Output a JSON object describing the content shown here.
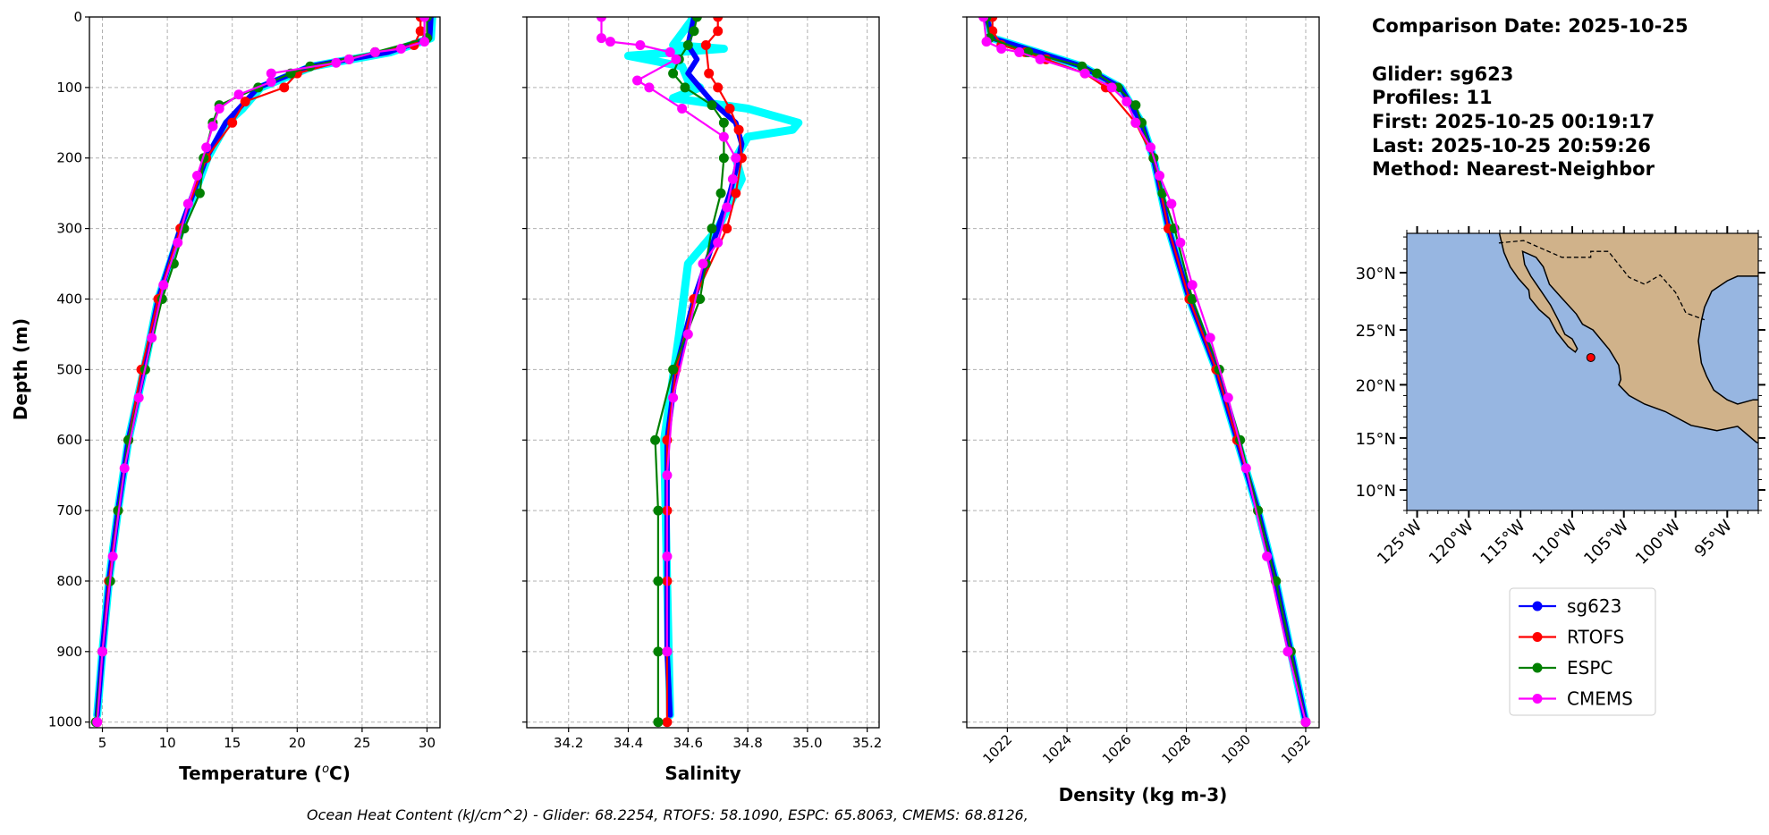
{
  "info": {
    "comparison_date": "Comparison Date: 2025-10-25",
    "glider": "Glider: sg623",
    "profiles": "Profiles: 11",
    "first": "First: 2025-10-25 00:19:17",
    "last": "Last: 2025-10-25 20:59:26",
    "method": "Method: Nearest-Neighbor"
  },
  "caption": "Ocean Heat Content (kJ/cm^2) - Glider: 68.2254,  RTOFS: 58.1090,  ESPC: 65.8063,  CMEMS: 68.8126,",
  "legend": [
    {
      "name": "sg623",
      "color": "#0000ff"
    },
    {
      "name": "RTOFS",
      "color": "#ff0000"
    },
    {
      "name": "ESPC",
      "color": "#008000"
    },
    {
      "name": "CMEMS",
      "color": "#ff00ff"
    }
  ],
  "colors": {
    "glider_raw": "#00ffff",
    "ocean": "#97b6e1",
    "land": "#d0b28a",
    "marker": "#ff0000"
  },
  "chart_data": [
    {
      "type": "line",
      "xlabel": "Temperature (°C)",
      "ylabel": "Depth (m)",
      "xlim": [
        4.0,
        31.0
      ],
      "ylim": [
        1008,
        0
      ],
      "xticks": [
        5,
        10,
        15,
        20,
        25,
        30
      ],
      "yticks": [
        0,
        100,
        200,
        300,
        400,
        500,
        600,
        700,
        800,
        900,
        1000
      ],
      "grid": true,
      "series": [
        {
          "name": "",
          "color": "#00ffff",
          "depth": [
            0,
            30,
            50,
            70,
            100,
            130,
            150,
            200,
            250,
            300,
            400,
            500,
            600,
            700,
            800,
            900,
            990
          ],
          "values": [
            30.4,
            30.3,
            27.2,
            21.2,
            17.2,
            15.8,
            14.6,
            13.1,
            12.1,
            11.1,
            9.3,
            8.2,
            7.0,
            6.2,
            5.5,
            5.0,
            4.6
          ]
        },
        {
          "name": "sg623",
          "color": "#0000ff",
          "depth": [
            0,
            30,
            50,
            70,
            100,
            130,
            150,
            200,
            250,
            300,
            400,
            500,
            600,
            700,
            800,
            900,
            990
          ],
          "values": [
            30.3,
            30.2,
            27,
            21,
            17,
            15.5,
            14.5,
            13,
            12,
            11,
            9.3,
            8.2,
            7,
            6.2,
            5.5,
            5,
            4.6
          ]
        },
        {
          "name": "RTOFS",
          "color": "#ff0000",
          "depth": [
            0,
            20,
            40,
            50,
            60,
            80,
            100,
            120,
            150,
            200,
            300,
            400,
            500,
            600,
            700,
            800,
            900,
            1000
          ],
          "values": [
            29.5,
            29.5,
            29,
            26,
            24,
            20,
            19,
            16,
            15,
            13,
            11,
            9.3,
            8,
            7,
            6.2,
            5.5,
            5,
            4.6
          ]
        },
        {
          "name": "ESPC",
          "color": "#008000",
          "depth": [
            0,
            30,
            50,
            70,
            80,
            100,
            125,
            150,
            200,
            250,
            300,
            350,
            400,
            500,
            600,
            700,
            800,
            900,
            1000
          ],
          "values": [
            30,
            30,
            26,
            21,
            19.5,
            17,
            14,
            13.5,
            12.8,
            12.5,
            11.3,
            10.5,
            9.6,
            8.3,
            7,
            6.2,
            5.6,
            5,
            4.5
          ]
        },
        {
          "name": "CMEMS",
          "color": "#ff00ff",
          "depth": [
            0,
            35,
            45,
            50,
            60,
            65,
            80,
            92,
            110,
            130,
            155,
            185,
            225,
            265,
            320,
            380,
            455,
            540,
            640,
            765,
            900,
            1000
          ],
          "values": [
            29.8,
            29.8,
            28,
            26,
            24,
            23,
            18,
            18,
            15.5,
            14,
            13.5,
            13,
            12.3,
            11.6,
            10.8,
            9.7,
            8.8,
            7.8,
            6.7,
            5.8,
            5,
            4.6
          ]
        }
      ]
    },
    {
      "type": "line",
      "xlabel": "Salinity",
      "xlim": [
        34.06,
        35.24
      ],
      "ylim": [
        1008,
        0
      ],
      "xticks": [
        34.2,
        34.4,
        34.6,
        34.8,
        35.0,
        35.2
      ],
      "grid": true,
      "series": [
        {
          "name": "",
          "color": "#00ffff",
          "depth": [
            0,
            40,
            45,
            55,
            70,
            90,
            100,
            115,
            130,
            150,
            160,
            170,
            200,
            230,
            300,
            350,
            450,
            600,
            800,
            990
          ],
          "values": [
            34.62,
            34.55,
            34.72,
            34.4,
            34.58,
            34.6,
            34.64,
            34.55,
            34.8,
            34.97,
            34.95,
            34.8,
            34.76,
            34.78,
            34.7,
            34.6,
            34.57,
            34.52,
            34.53,
            34.54
          ]
        },
        {
          "name": "sg623",
          "color": "#0000ff",
          "depth": [
            0,
            40,
            60,
            80,
            100,
            120,
            150,
            180,
            200,
            250,
            300,
            350,
            400,
            500,
            600,
            700,
            800,
            900,
            990
          ],
          "values": [
            34.62,
            34.6,
            34.63,
            34.6,
            34.64,
            34.68,
            34.76,
            34.78,
            34.77,
            34.74,
            34.7,
            34.66,
            34.62,
            34.56,
            34.53,
            34.53,
            34.53,
            34.53,
            34.54
          ]
        },
        {
          "name": "RTOFS",
          "color": "#ff0000",
          "depth": [
            0,
            20,
            40,
            80,
            100,
            130,
            160,
            200,
            250,
            300,
            400,
            500,
            600,
            700,
            800,
            900,
            1000
          ],
          "values": [
            34.7,
            34.7,
            34.66,
            34.67,
            34.7,
            34.74,
            34.77,
            34.78,
            34.76,
            34.73,
            34.62,
            34.56,
            34.53,
            34.53,
            34.53,
            34.53,
            34.53
          ]
        },
        {
          "name": "ESPC",
          "color": "#008000",
          "depth": [
            0,
            20,
            40,
            60,
            80,
            100,
            125,
            150,
            200,
            250,
            300,
            350,
            400,
            500,
            600,
            700,
            800,
            900,
            1000
          ],
          "values": [
            34.63,
            34.62,
            34.6,
            34.57,
            34.55,
            34.59,
            34.68,
            34.72,
            34.72,
            34.71,
            34.68,
            34.66,
            34.64,
            34.55,
            34.49,
            34.5,
            34.5,
            34.5,
            34.5
          ]
        },
        {
          "name": "CMEMS",
          "color": "#ff00ff",
          "depth": [
            0,
            30,
            35,
            40,
            50,
            60,
            90,
            100,
            130,
            170,
            200,
            230,
            270,
            320,
            350,
            450,
            540,
            650,
            765,
            900
          ],
          "values": [
            34.31,
            34.31,
            34.34,
            34.44,
            34.54,
            34.56,
            34.43,
            34.47,
            34.58,
            34.72,
            34.76,
            34.75,
            34.73,
            34.7,
            34.65,
            34.6,
            34.55,
            34.53,
            34.53,
            34.53
          ]
        }
      ]
    },
    {
      "type": "line",
      "xlabel": "Density (kg m-3)",
      "xlim": [
        1020.64,
        1032.45
      ],
      "ylim": [
        1008,
        0
      ],
      "xticks": [
        1022,
        1024,
        1026,
        1028,
        1030,
        1032
      ],
      "grid": true,
      "series": [
        {
          "name": "",
          "color": "#00ffff",
          "depth": [
            0,
            30,
            50,
            70,
            100,
            150,
            200,
            300,
            400,
            500,
            600,
            700,
            800,
            900,
            1000
          ],
          "values": [
            1021.3,
            1021.5,
            1023,
            1024.5,
            1025.8,
            1026.5,
            1026.9,
            1027.4,
            1028.1,
            1029,
            1029.7,
            1030.4,
            1031,
            1031.5,
            1032
          ]
        },
        {
          "name": "sg623",
          "color": "#0000ff",
          "depth": [
            0,
            30,
            50,
            70,
            100,
            150,
            200,
            300,
            400,
            500,
            600,
            700,
            800,
            900,
            1000
          ],
          "values": [
            1021.3,
            1021.5,
            1023,
            1024.5,
            1025.8,
            1026.5,
            1026.9,
            1027.4,
            1028.1,
            1029,
            1029.7,
            1030.4,
            1031,
            1031.5,
            1032
          ]
        },
        {
          "name": "RTOFS",
          "color": "#ff0000",
          "depth": [
            0,
            20,
            40,
            50,
            60,
            80,
            100,
            150,
            200,
            300,
            400,
            500,
            600,
            700,
            800,
            900,
            1000
          ],
          "values": [
            1021.5,
            1021.5,
            1021.8,
            1022.6,
            1023.3,
            1024.6,
            1025.3,
            1026.3,
            1026.9,
            1027.4,
            1028.1,
            1029,
            1029.7,
            1030.4,
            1031,
            1031.5,
            1032
          ]
        },
        {
          "name": "ESPC",
          "color": "#008000",
          "depth": [
            0,
            30,
            50,
            70,
            80,
            100,
            125,
            150,
            200,
            250,
            300,
            400,
            500,
            600,
            700,
            800,
            900,
            1000
          ],
          "values": [
            1021.3,
            1021.4,
            1022.7,
            1024.5,
            1025,
            1025.7,
            1026.3,
            1026.5,
            1026.9,
            1027.2,
            1027.6,
            1028.2,
            1029.1,
            1029.8,
            1030.4,
            1031,
            1031.5,
            1032
          ]
        },
        {
          "name": "CMEMS",
          "color": "#ff00ff",
          "depth": [
            0,
            35,
            45,
            50,
            60,
            80,
            100,
            120,
            150,
            185,
            225,
            265,
            320,
            380,
            455,
            540,
            640,
            765,
            900,
            1000
          ],
          "values": [
            1021.2,
            1021.3,
            1021.8,
            1022.4,
            1023.1,
            1024.6,
            1025.5,
            1026,
            1026.3,
            1026.8,
            1027.1,
            1027.5,
            1027.8,
            1028.2,
            1028.8,
            1029.4,
            1030,
            1030.7,
            1031.4,
            1032
          ]
        }
      ]
    },
    {
      "type": "map",
      "lon_range": [
        -126,
        -92
      ],
      "lat_range": [
        8,
        33.3
      ],
      "lon_ticks": [
        "125°W",
        "120°W",
        "115°W",
        "110°W",
        "105°W",
        "100°W",
        "95°W"
      ],
      "lon_tick_values": [
        -125,
        -120,
        -115,
        -110,
        -105,
        -100,
        -95
      ],
      "lat_ticks": [
        "10°N",
        "15°N",
        "20°N",
        "25°N",
        "30°N"
      ],
      "lat_tick_values": [
        10,
        15,
        20,
        25,
        30
      ],
      "marker": {
        "lon": -108.2,
        "lat": 22.5
      }
    }
  ]
}
